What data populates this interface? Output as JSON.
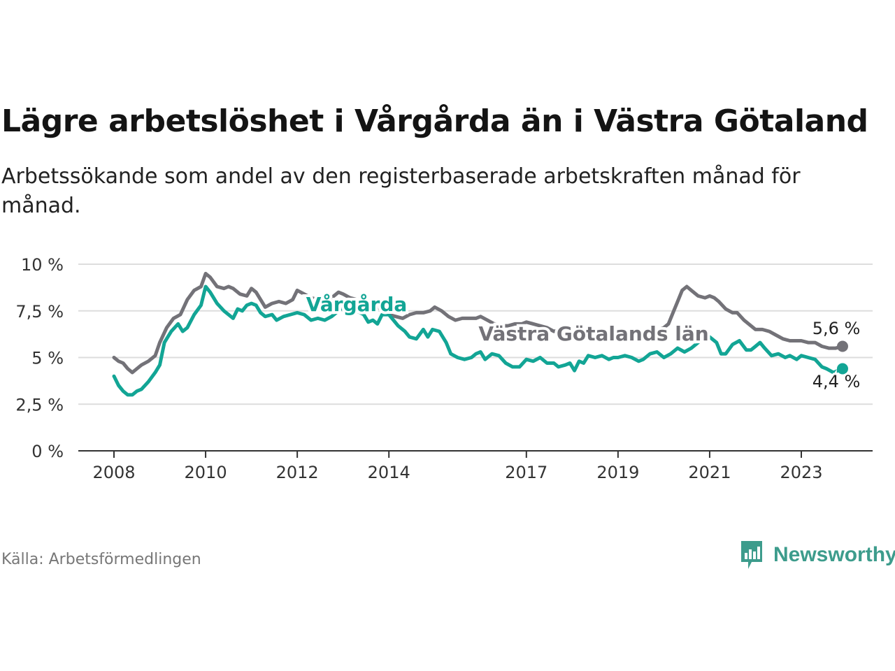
{
  "title": "Lägre arbetslöshet i Vårgårda än i Västra Götaland",
  "subtitle": "Arbetssökande som andel av den registerbaserade arbetskraften månad för månad.",
  "source": "Källa: Arbetsförmedlingen",
  "brand": {
    "name": "Newsworthy",
    "icon": "newsworthy-logo-icon"
  },
  "colors": {
    "vargarda": "#12a595",
    "vastra": "#737278",
    "grid": "#dddddd",
    "axis": "#333333"
  },
  "chart_data": {
    "type": "line",
    "title": "Lägre arbetslöshet i Vårgårda än i Västra Götaland",
    "xlabel": "",
    "ylabel": "",
    "xlim": [
      2008,
      2024.6
    ],
    "ylim": [
      0,
      10
    ],
    "grid": true,
    "y_ticks": [
      {
        "value": 0,
        "label": "0 %"
      },
      {
        "value": 2.5,
        "label": "2,5 %"
      },
      {
        "value": 5,
        "label": "5 %"
      },
      {
        "value": 7.5,
        "label": "7,5 %"
      },
      {
        "value": 10,
        "label": "10 %"
      }
    ],
    "x_ticks": [
      {
        "value": 2008,
        "label": "2008"
      },
      {
        "value": 2010,
        "label": "2010"
      },
      {
        "value": 2012,
        "label": "2012"
      },
      {
        "value": 2014,
        "label": "2014"
      },
      {
        "value": 2017,
        "label": "2017"
      },
      {
        "value": 2019,
        "label": "2019"
      },
      {
        "value": 2021,
        "label": "2021"
      },
      {
        "value": 2023,
        "label": "2023"
      }
    ],
    "series": [
      {
        "name": "Västra Götalands län",
        "label": "Västra Götalands län",
        "end_label": "5,6 %",
        "color": "#737278",
        "points": [
          [
            2008.0,
            5.0
          ],
          [
            2008.1,
            4.8
          ],
          [
            2008.2,
            4.7
          ],
          [
            2008.3,
            4.4
          ],
          [
            2008.4,
            4.2
          ],
          [
            2008.5,
            4.4
          ],
          [
            2008.6,
            4.6
          ],
          [
            2008.75,
            4.8
          ],
          [
            2008.9,
            5.1
          ],
          [
            2009.0,
            5.8
          ],
          [
            2009.15,
            6.6
          ],
          [
            2009.3,
            7.1
          ],
          [
            2009.45,
            7.3
          ],
          [
            2009.6,
            8.1
          ],
          [
            2009.75,
            8.6
          ],
          [
            2009.9,
            8.8
          ],
          [
            2010.0,
            9.5
          ],
          [
            2010.1,
            9.3
          ],
          [
            2010.25,
            8.8
          ],
          [
            2010.4,
            8.7
          ],
          [
            2010.5,
            8.8
          ],
          [
            2010.6,
            8.7
          ],
          [
            2010.75,
            8.4
          ],
          [
            2010.9,
            8.3
          ],
          [
            2011.0,
            8.7
          ],
          [
            2011.1,
            8.5
          ],
          [
            2011.2,
            8.1
          ],
          [
            2011.3,
            7.7
          ],
          [
            2011.45,
            7.9
          ],
          [
            2011.6,
            8.0
          ],
          [
            2011.75,
            7.9
          ],
          [
            2011.9,
            8.1
          ],
          [
            2012.0,
            8.6
          ],
          [
            2012.15,
            8.4
          ],
          [
            2012.3,
            8.2
          ],
          [
            2012.45,
            8.1
          ],
          [
            2012.6,
            8.0
          ],
          [
            2012.75,
            8.2
          ],
          [
            2012.9,
            8.5
          ],
          [
            2013.0,
            8.4
          ],
          [
            2013.15,
            8.2
          ],
          [
            2013.3,
            8.1
          ],
          [
            2013.45,
            8.0
          ],
          [
            2013.6,
            7.9
          ],
          [
            2013.75,
            7.7
          ],
          [
            2013.9,
            7.5
          ],
          [
            2014.0,
            7.3
          ],
          [
            2014.15,
            7.2
          ],
          [
            2014.3,
            7.1
          ],
          [
            2014.45,
            7.3
          ],
          [
            2014.6,
            7.4
          ],
          [
            2014.75,
            7.4
          ],
          [
            2014.9,
            7.5
          ],
          [
            2015.0,
            7.7
          ],
          [
            2015.15,
            7.5
          ],
          [
            2015.3,
            7.2
          ],
          [
            2015.45,
            7.0
          ],
          [
            2015.6,
            7.1
          ],
          [
            2015.75,
            7.1
          ],
          [
            2015.9,
            7.1
          ],
          [
            2016.0,
            7.2
          ],
          [
            2016.15,
            7.0
          ],
          [
            2016.3,
            6.8
          ],
          [
            2016.45,
            6.7
          ],
          [
            2016.6,
            6.7
          ],
          [
            2016.75,
            6.8
          ],
          [
            2016.9,
            6.8
          ],
          [
            2017.0,
            6.9
          ],
          [
            2017.15,
            6.8
          ],
          [
            2017.3,
            6.7
          ],
          [
            2017.45,
            6.6
          ],
          [
            2017.6,
            6.4
          ],
          [
            2017.75,
            6.5
          ],
          [
            2017.9,
            6.4
          ],
          [
            2018.0,
            6.2
          ],
          [
            2018.15,
            6.1
          ],
          [
            2018.3,
            6.2
          ],
          [
            2018.45,
            6.1
          ],
          [
            2018.6,
            6.1
          ],
          [
            2018.75,
            6.0
          ],
          [
            2018.9,
            6.1
          ],
          [
            2019.0,
            6.0
          ],
          [
            2019.15,
            6.1
          ],
          [
            2019.3,
            6.2
          ],
          [
            2019.45,
            6.2
          ],
          [
            2019.6,
            6.3
          ],
          [
            2019.75,
            6.4
          ],
          [
            2019.9,
            6.5
          ],
          [
            2020.0,
            6.6
          ],
          [
            2020.1,
            6.8
          ],
          [
            2020.2,
            7.4
          ],
          [
            2020.3,
            8.0
          ],
          [
            2020.4,
            8.6
          ],
          [
            2020.5,
            8.8
          ],
          [
            2020.6,
            8.6
          ],
          [
            2020.75,
            8.3
          ],
          [
            2020.9,
            8.2
          ],
          [
            2021.0,
            8.3
          ],
          [
            2021.1,
            8.2
          ],
          [
            2021.2,
            8.0
          ],
          [
            2021.35,
            7.6
          ],
          [
            2021.5,
            7.4
          ],
          [
            2021.6,
            7.4
          ],
          [
            2021.75,
            7.0
          ],
          [
            2021.9,
            6.7
          ],
          [
            2022.0,
            6.5
          ],
          [
            2022.15,
            6.5
          ],
          [
            2022.3,
            6.4
          ],
          [
            2022.45,
            6.2
          ],
          [
            2022.6,
            6.0
          ],
          [
            2022.75,
            5.9
          ],
          [
            2022.9,
            5.9
          ],
          [
            2023.0,
            5.9
          ],
          [
            2023.15,
            5.8
          ],
          [
            2023.3,
            5.8
          ],
          [
            2023.45,
            5.6
          ],
          [
            2023.6,
            5.5
          ],
          [
            2023.75,
            5.5
          ],
          [
            2023.9,
            5.6
          ]
        ]
      },
      {
        "name": "Vårgårda",
        "label": "Vårgårda",
        "end_label": "4,4 %",
        "color": "#12a595",
        "points": [
          [
            2008.0,
            4.0
          ],
          [
            2008.1,
            3.5
          ],
          [
            2008.2,
            3.2
          ],
          [
            2008.3,
            3.0
          ],
          [
            2008.4,
            3.0
          ],
          [
            2008.5,
            3.2
          ],
          [
            2008.6,
            3.3
          ],
          [
            2008.75,
            3.7
          ],
          [
            2008.9,
            4.2
          ],
          [
            2009.0,
            4.6
          ],
          [
            2009.1,
            5.8
          ],
          [
            2009.25,
            6.4
          ],
          [
            2009.4,
            6.8
          ],
          [
            2009.5,
            6.4
          ],
          [
            2009.6,
            6.6
          ],
          [
            2009.75,
            7.3
          ],
          [
            2009.9,
            7.8
          ],
          [
            2010.0,
            8.8
          ],
          [
            2010.1,
            8.5
          ],
          [
            2010.25,
            7.9
          ],
          [
            2010.4,
            7.5
          ],
          [
            2010.5,
            7.3
          ],
          [
            2010.6,
            7.1
          ],
          [
            2010.7,
            7.6
          ],
          [
            2010.8,
            7.5
          ],
          [
            2010.9,
            7.8
          ],
          [
            2011.0,
            7.9
          ],
          [
            2011.1,
            7.8
          ],
          [
            2011.2,
            7.4
          ],
          [
            2011.3,
            7.2
          ],
          [
            2011.45,
            7.3
          ],
          [
            2011.55,
            7.0
          ],
          [
            2011.7,
            7.2
          ],
          [
            2011.85,
            7.3
          ],
          [
            2012.0,
            7.4
          ],
          [
            2012.15,
            7.3
          ],
          [
            2012.3,
            7.0
          ],
          [
            2012.45,
            7.1
          ],
          [
            2012.6,
            7.0
          ],
          [
            2012.75,
            7.2
          ],
          [
            2012.9,
            7.5
          ],
          [
            2013.0,
            7.7
          ],
          [
            2013.15,
            7.6
          ],
          [
            2013.3,
            7.5
          ],
          [
            2013.45,
            7.3
          ],
          [
            2013.55,
            6.9
          ],
          [
            2013.65,
            7.0
          ],
          [
            2013.75,
            6.8
          ],
          [
            2013.85,
            7.3
          ],
          [
            2014.0,
            7.3
          ],
          [
            2014.1,
            7.0
          ],
          [
            2014.2,
            6.7
          ],
          [
            2014.35,
            6.4
          ],
          [
            2014.45,
            6.1
          ],
          [
            2014.6,
            6.0
          ],
          [
            2014.75,
            6.5
          ],
          [
            2014.85,
            6.1
          ],
          [
            2014.95,
            6.5
          ],
          [
            2015.1,
            6.4
          ],
          [
            2015.25,
            5.8
          ],
          [
            2015.35,
            5.2
          ],
          [
            2015.5,
            5.0
          ],
          [
            2015.65,
            4.9
          ],
          [
            2015.8,
            5.0
          ],
          [
            2015.9,
            5.2
          ],
          [
            2016.0,
            5.3
          ],
          [
            2016.1,
            4.9
          ],
          [
            2016.25,
            5.2
          ],
          [
            2016.4,
            5.1
          ],
          [
            2016.55,
            4.7
          ],
          [
            2016.7,
            4.5
          ],
          [
            2016.85,
            4.5
          ],
          [
            2017.0,
            4.9
          ],
          [
            2017.15,
            4.8
          ],
          [
            2017.3,
            5.0
          ],
          [
            2017.45,
            4.7
          ],
          [
            2017.6,
            4.7
          ],
          [
            2017.7,
            4.5
          ],
          [
            2017.85,
            4.6
          ],
          [
            2017.95,
            4.7
          ],
          [
            2018.05,
            4.3
          ],
          [
            2018.15,
            4.8
          ],
          [
            2018.25,
            4.7
          ],
          [
            2018.35,
            5.1
          ],
          [
            2018.5,
            5.0
          ],
          [
            2018.65,
            5.1
          ],
          [
            2018.8,
            4.9
          ],
          [
            2018.9,
            5.0
          ],
          [
            2019.0,
            5.0
          ],
          [
            2019.15,
            5.1
          ],
          [
            2019.3,
            5.0
          ],
          [
            2019.45,
            4.8
          ],
          [
            2019.55,
            4.9
          ],
          [
            2019.7,
            5.2
          ],
          [
            2019.85,
            5.3
          ],
          [
            2020.0,
            5.0
          ],
          [
            2020.15,
            5.2
          ],
          [
            2020.3,
            5.5
          ],
          [
            2020.45,
            5.3
          ],
          [
            2020.6,
            5.5
          ],
          [
            2020.75,
            5.8
          ],
          [
            2020.9,
            6.2
          ],
          [
            2021.0,
            6.1
          ],
          [
            2021.15,
            5.8
          ],
          [
            2021.25,
            5.2
          ],
          [
            2021.35,
            5.2
          ],
          [
            2021.5,
            5.7
          ],
          [
            2021.65,
            5.9
          ],
          [
            2021.8,
            5.4
          ],
          [
            2021.9,
            5.4
          ],
          [
            2022.0,
            5.6
          ],
          [
            2022.1,
            5.8
          ],
          [
            2022.2,
            5.5
          ],
          [
            2022.35,
            5.1
          ],
          [
            2022.5,
            5.2
          ],
          [
            2022.65,
            5.0
          ],
          [
            2022.75,
            5.1
          ],
          [
            2022.9,
            4.9
          ],
          [
            2023.0,
            5.1
          ],
          [
            2023.15,
            5.0
          ],
          [
            2023.3,
            4.9
          ],
          [
            2023.45,
            4.5
          ],
          [
            2023.55,
            4.4
          ],
          [
            2023.7,
            4.2
          ],
          [
            2023.9,
            4.4
          ]
        ]
      }
    ]
  }
}
